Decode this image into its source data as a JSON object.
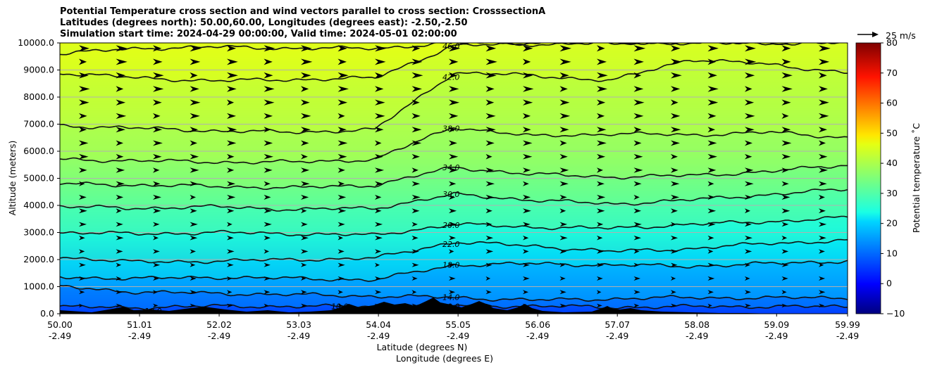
{
  "title": {
    "line1": "Potential Temperature cross section and wind vectors parallel to cross section: CrosssectionA",
    "line2": "Latitudes (degrees north): 50.00,60.00, Longitudes (degrees east): -2.50,-2.50",
    "line3": "Simulation start time: 2024-04-29 00:00:00, Valid time: 2024-05-01 02:00:00"
  },
  "chart_data": {
    "type": "contour",
    "xlabel_lat": "Latitude (degrees N)",
    "xlabel_lon": "Longitude (degrees E)",
    "ylabel": "Altitude (meters)",
    "ylim": [
      0,
      10000
    ],
    "xlim": [
      50.0,
      59.99
    ],
    "y_ticks": [
      "0.0",
      "1000.0",
      "2000.0",
      "3000.0",
      "4000.0",
      "5000.0",
      "6000.0",
      "7000.0",
      "8000.0",
      "9000.0",
      "10000.0"
    ],
    "x_ticks": [
      {
        "lat": "50.00",
        "lon": "-2.49"
      },
      {
        "lat": "51.01",
        "lon": "-2.49"
      },
      {
        "lat": "52.02",
        "lon": "-2.49"
      },
      {
        "lat": "53.03",
        "lon": "-2.49"
      },
      {
        "lat": "54.04",
        "lon": "-2.49"
      },
      {
        "lat": "55.05",
        "lon": "-2.49"
      },
      {
        "lat": "56.06",
        "lon": "-2.49"
      },
      {
        "lat": "57.07",
        "lon": "-2.49"
      },
      {
        "lat": "58.08",
        "lon": "-2.49"
      },
      {
        "lat": "59.09",
        "lon": "-2.49"
      },
      {
        "lat": "59.99",
        "lon": "-2.49"
      }
    ],
    "grid": "horizontal",
    "colorbar": {
      "label": "Potential temperature $^\\circ$C",
      "label_text": "Potential temperature ˚C",
      "min": -10,
      "max": 80,
      "ticks": [
        "−10",
        "0",
        "10",
        "20",
        "30",
        "40",
        "50",
        "60",
        "70",
        "80"
      ],
      "colormap": "jet"
    },
    "contours": [
      {
        "level": 10.0,
        "label": "10.0",
        "altitudes": [
          250,
          230,
          280,
          270,
          260,
          300,
          280,
          240,
          260,
          270,
          250
        ]
      },
      {
        "level": 14.0,
        "label": "14.0",
        "altitudes": [
          1000,
          800,
          750,
          700,
          650,
          600,
          500,
          550,
          600,
          580,
          600
        ]
      },
      {
        "level": 18.0,
        "label": "18.0",
        "altitudes": [
          1350,
          1300,
          1350,
          1300,
          1250,
          1800,
          1850,
          1800,
          1750,
          1850,
          1950
        ]
      },
      {
        "level": 22.0,
        "label": "22.0",
        "altitudes": [
          2100,
          1900,
          1950,
          2000,
          2050,
          2650,
          2500,
          2300,
          2400,
          2600,
          2700
        ]
      },
      {
        "level": 26.0,
        "label": "26.0",
        "altitudes": [
          3000,
          2950,
          3000,
          2950,
          2900,
          3300,
          3200,
          3150,
          3300,
          3400,
          3550
        ]
      },
      {
        "level": 30.0,
        "label": "30.0",
        "altitudes": [
          3950,
          3900,
          3950,
          3850,
          3900,
          4400,
          4200,
          4050,
          4200,
          4400,
          4600
        ]
      },
      {
        "level": 34.0,
        "label": "34.0",
        "altitudes": [
          4800,
          4750,
          4700,
          4650,
          4750,
          5400,
          5150,
          5050,
          5100,
          5250,
          5500
        ]
      },
      {
        "level": 38.0,
        "label": "38.0",
        "altitudes": [
          5700,
          5650,
          5600,
          5600,
          5700,
          6900,
          6550,
          6650,
          6600,
          6700,
          6500
        ]
      },
      {
        "level": 42.0,
        "label": "42.0",
        "altitudes": [
          6950,
          6850,
          6750,
          6700,
          6800,
          8900,
          8800,
          8600,
          9400,
          9200,
          8900
        ]
      },
      {
        "level": 46.0,
        "label": "46.0",
        "altitudes": [
          8900,
          8700,
          8600,
          8650,
          8700,
          9900,
          9950,
          10000,
          10000,
          10000,
          10000
        ]
      },
      {
        "level": 50.0,
        "label": "",
        "altitudes": [
          9600,
          9800,
          9850,
          9800,
          9800,
          10000,
          10000,
          10000,
          10000,
          10000,
          10000
        ]
      }
    ],
    "wind_reference": {
      "speed": 25,
      "unit": "m/s",
      "label": "25 m/s"
    }
  }
}
